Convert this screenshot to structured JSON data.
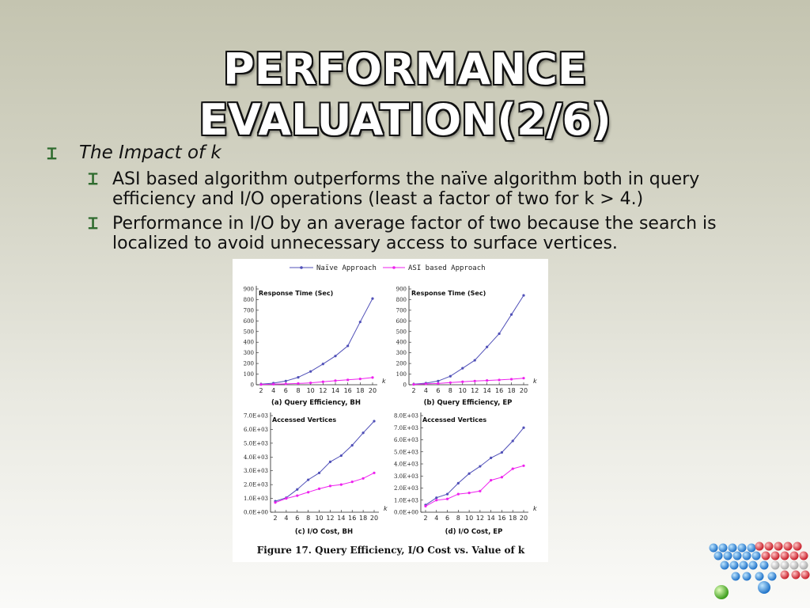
{
  "slide": {
    "title_lines": [
      "PERFORMANCE",
      "EVALUATION(2/6)"
    ],
    "bullet_main": "The Impact of k",
    "sub_bullets": [
      "ASI based algorithm outperforms the naïve algorithm both in query efficiency and I/O operations (least a factor of two for k > 4.)",
      "Performance in I/O by an average factor of two because the search is localized to avoid unnecessary access to surface vertices."
    ],
    "bullet_glyph": "Ɪ",
    "colors": {
      "naive": "#5050b8",
      "asi": "#ee22ee",
      "bullet": "#2e6b2e"
    }
  },
  "figure": {
    "legend": [
      "Naïve Approach",
      "ASI based Approach"
    ],
    "caption": "Figure 17. Query Efficiency, I/O Cost vs. Value of k",
    "axis_k_label": "k"
  },
  "chart_data": [
    {
      "type": "line",
      "title": "Response Time (Sec)",
      "subcaption": "(a) Query Efficiency, BH",
      "x": [
        2,
        4,
        6,
        8,
        10,
        12,
        14,
        16,
        18,
        20
      ],
      "xlabel": "k",
      "ylim": [
        0,
        900
      ],
      "yticks": [
        0,
        100,
        200,
        300,
        400,
        500,
        600,
        700,
        800,
        900
      ],
      "ytick_labels": [
        "0",
        "100",
        "200",
        "300",
        "400",
        "500",
        "600",
        "700",
        "800",
        "900"
      ],
      "series": [
        {
          "name": "Naïve Approach",
          "values": [
            5,
            15,
            35,
            70,
            125,
            195,
            270,
            365,
            590,
            810
          ]
        },
        {
          "name": "ASI based Approach",
          "values": [
            2,
            5,
            8,
            12,
            18,
            28,
            38,
            46,
            55,
            68
          ]
        }
      ]
    },
    {
      "type": "line",
      "title": "Response Time (Sec)",
      "subcaption": "(b) Query Efficiency, EP",
      "x": [
        2,
        4,
        6,
        8,
        10,
        12,
        14,
        16,
        18,
        20
      ],
      "xlabel": "k",
      "ylim": [
        0,
        900
      ],
      "yticks": [
        0,
        100,
        200,
        300,
        400,
        500,
        600,
        700,
        800,
        900
      ],
      "ytick_labels": [
        "0",
        "100",
        "200",
        "300",
        "400",
        "500",
        "600",
        "700",
        "800",
        "900"
      ],
      "series": [
        {
          "name": "Naïve Approach",
          "values": [
            5,
            15,
            35,
            80,
            155,
            230,
            355,
            480,
            660,
            840
          ]
        },
        {
          "name": "ASI based Approach",
          "values": [
            3,
            8,
            12,
            20,
            28,
            35,
            40,
            45,
            52,
            62
          ]
        }
      ]
    },
    {
      "type": "line",
      "title": "Accessed Vertices",
      "subcaption": "(c) I/O Cost, BH",
      "x": [
        2,
        4,
        6,
        8,
        10,
        12,
        14,
        16,
        18,
        20
      ],
      "xlabel": "k",
      "ylim": [
        0,
        7000
      ],
      "yticks": [
        0,
        1000,
        2000,
        3000,
        4000,
        5000,
        6000,
        7000
      ],
      "ytick_labels": [
        "0.0E+00",
        "1.0E+03",
        "2.0E+03",
        "3.0E+03",
        "4.0E+03",
        "5.0E+03",
        "6.0E+03",
        "7.0E+03"
      ],
      "series": [
        {
          "name": "Naïve Approach",
          "values": [
            800,
            1050,
            1650,
            2350,
            2850,
            3650,
            4100,
            4850,
            5750,
            6600
          ]
        },
        {
          "name": "ASI based Approach",
          "values": [
            700,
            1000,
            1200,
            1450,
            1700,
            1900,
            2000,
            2200,
            2450,
            2850
          ]
        }
      ]
    },
    {
      "type": "line",
      "title": "Accessed Vertices",
      "subcaption": "(d) I/O Cost, EP",
      "x": [
        2,
        4,
        6,
        8,
        10,
        12,
        14,
        16,
        18,
        20
      ],
      "xlabel": "k",
      "ylim": [
        0,
        8000
      ],
      "yticks": [
        0,
        1000,
        2000,
        3000,
        4000,
        5000,
        6000,
        7000,
        8000
      ],
      "ytick_labels": [
        "0.0E+00",
        "1.0E+03",
        "2.0E+03",
        "3.0E+03",
        "4.0E+03",
        "5.0E+03",
        "6.0E+03",
        "7.0E+03",
        "8.0E+03"
      ],
      "series": [
        {
          "name": "Naïve Approach",
          "values": [
            600,
            1200,
            1500,
            2400,
            3200,
            3800,
            4500,
            4950,
            5900,
            7000
          ]
        },
        {
          "name": "ASI based Approach",
          "values": [
            500,
            1000,
            1100,
            1500,
            1600,
            1750,
            2650,
            2900,
            3600,
            3850
          ]
        }
      ]
    }
  ]
}
